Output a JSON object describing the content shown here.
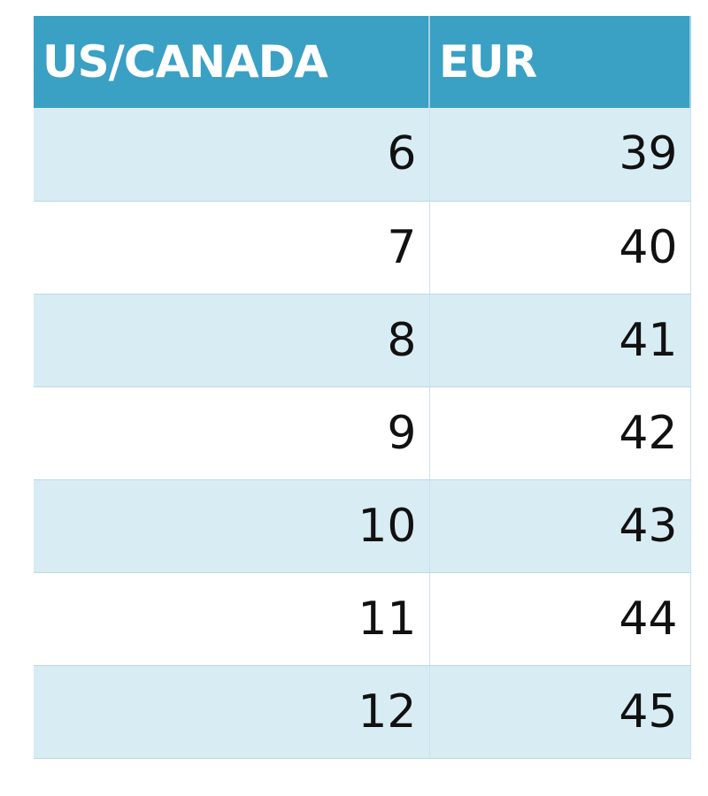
{
  "table": {
    "header": [
      "US/CANADA",
      "EUR"
    ],
    "rows": [
      [
        6,
        39
      ],
      [
        7,
        40
      ],
      [
        8,
        41
      ],
      [
        9,
        42
      ],
      [
        10,
        43
      ],
      [
        11,
        44
      ],
      [
        12,
        45
      ]
    ]
  }
}
